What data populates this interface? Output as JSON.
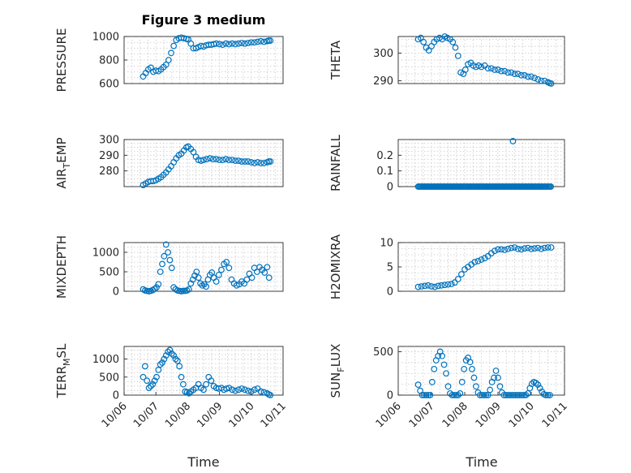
{
  "figure": {
    "title": "Figure 3 medium",
    "xlabel": "Time"
  },
  "chart_data": [
    {
      "type": "scatter",
      "ylabel": "PRESSURE",
      "ylim": [
        600,
        1000
      ],
      "yticks": [
        600,
        800,
        1000
      ],
      "xlim": [
        0,
        5
      ],
      "xticks": [],
      "color": "#0072BD",
      "grid": true,
      "x": [
        0.6,
        0.68,
        0.76,
        0.84,
        0.92,
        1.0,
        1.08,
        1.16,
        1.24,
        1.32,
        1.4,
        1.48,
        1.56,
        1.64,
        1.72,
        1.8,
        1.88,
        1.96,
        2.02,
        2.1,
        2.18,
        2.26,
        2.34,
        2.42,
        2.5,
        2.58,
        2.66,
        2.74,
        2.82,
        2.9,
        3.0,
        3.1,
        3.2,
        3.3,
        3.4,
        3.5,
        3.6,
        3.7,
        3.8,
        3.9,
        4.0,
        4.1,
        4.2,
        4.3,
        4.4,
        4.5,
        4.55,
        4.6
      ],
      "y": [
        660,
        690,
        720,
        735,
        700,
        710,
        705,
        720,
        740,
        760,
        800,
        860,
        920,
        970,
        985,
        990,
        985,
        980,
        975,
        940,
        900,
        900,
        910,
        920,
        915,
        925,
        930,
        930,
        935,
        940,
        935,
        930,
        940,
        935,
        940,
        935,
        940,
        945,
        940,
        945,
        950,
        950,
        955,
        960,
        955,
        960,
        965,
        965
      ]
    },
    {
      "type": "scatter",
      "ylabel": "THETA",
      "ylim": [
        289,
        306
      ],
      "yticks": [
        290,
        300
      ],
      "xlim": [
        0,
        5
      ],
      "xticks": [],
      "color": "#0072BD",
      "grid": true,
      "x": [
        0.6,
        0.68,
        0.76,
        0.84,
        0.92,
        1.0,
        1.08,
        1.16,
        1.24,
        1.32,
        1.4,
        1.48,
        1.56,
        1.64,
        1.72,
        1.8,
        1.88,
        1.96,
        2.02,
        2.1,
        2.18,
        2.26,
        2.34,
        2.42,
        2.5,
        2.6,
        2.7,
        2.8,
        2.9,
        3.0,
        3.1,
        3.2,
        3.3,
        3.4,
        3.5,
        3.6,
        3.7,
        3.8,
        3.9,
        4.0,
        4.1,
        4.2,
        4.3,
        4.4,
        4.5,
        4.55,
        4.6
      ],
      "y": [
        305,
        305.5,
        304,
        302,
        301,
        302.5,
        304,
        305,
        305.5,
        305,
        306,
        305.5,
        305,
        304,
        302,
        299,
        293,
        292.5,
        294,
        296,
        296.5,
        295.5,
        295,
        295.5,
        295,
        295.5,
        294.5,
        294.5,
        294,
        294,
        293.5,
        293.5,
        293,
        293,
        292.5,
        292.5,
        292,
        292,
        291.5,
        291.5,
        291,
        290.5,
        290,
        290,
        289.5,
        289.2,
        289
      ]
    },
    {
      "type": "scatter",
      "ylabel": "AIR_TEMP",
      "ylim": [
        270,
        300
      ],
      "yticks": [
        280,
        290,
        300
      ],
      "xlim": [
        0,
        5
      ],
      "xticks": [],
      "color": "#0072BD",
      "grid": true,
      "x": [
        0.6,
        0.68,
        0.76,
        0.84,
        0.92,
        1.0,
        1.08,
        1.16,
        1.24,
        1.32,
        1.4,
        1.48,
        1.56,
        1.64,
        1.72,
        1.8,
        1.88,
        1.96,
        2.02,
        2.1,
        2.18,
        2.26,
        2.34,
        2.42,
        2.5,
        2.6,
        2.7,
        2.8,
        2.9,
        3.0,
        3.1,
        3.2,
        3.3,
        3.4,
        3.5,
        3.6,
        3.7,
        3.8,
        3.9,
        4.0,
        4.1,
        4.2,
        4.3,
        4.4,
        4.5,
        4.55,
        4.6
      ],
      "y": [
        271,
        272,
        273,
        273.5,
        273.5,
        274,
        275,
        276,
        277.5,
        279,
        281,
        283,
        285.5,
        288,
        290,
        291,
        293,
        295,
        295.5,
        294,
        292,
        289,
        287,
        286.5,
        287,
        287.5,
        288,
        287.5,
        287.5,
        287,
        287,
        287.5,
        287,
        287,
        286.5,
        286.5,
        286,
        286,
        286,
        285.5,
        285,
        285.5,
        285,
        285,
        285.5,
        286,
        286
      ]
    },
    {
      "type": "scatter",
      "ylabel": "RAINFALL",
      "ylim": [
        0,
        0.3
      ],
      "yticks": [
        0,
        0.1,
        0.2
      ],
      "xlim": [
        0,
        5
      ],
      "xticks": [],
      "color": "#0072BD",
      "grid": true,
      "x_range": [
        0.6,
        4.6
      ],
      "baseline": 0,
      "x": [
        3.45
      ],
      "y": [
        0.29
      ]
    },
    {
      "type": "scatter",
      "ylabel": "MIXDEPTH",
      "ylim": [
        0,
        1250
      ],
      "yticks": [
        0,
        500,
        1000
      ],
      "xlim": [
        0,
        5
      ],
      "xticks": [],
      "color": "#0072BD",
      "grid": true,
      "x": [
        0.6,
        0.66,
        0.72,
        0.78,
        0.84,
        0.9,
        0.96,
        1.02,
        1.08,
        1.14,
        1.2,
        1.26,
        1.32,
        1.38,
        1.44,
        1.5,
        1.56,
        1.62,
        1.68,
        1.74,
        1.8,
        1.86,
        1.92,
        1.98,
        2.04,
        2.1,
        2.16,
        2.22,
        2.28,
        2.34,
        2.4,
        2.46,
        2.52,
        2.58,
        2.64,
        2.7,
        2.76,
        2.82,
        2.9,
        2.98,
        3.06,
        3.14,
        3.22,
        3.3,
        3.38,
        3.46,
        3.54,
        3.62,
        3.7,
        3.78,
        3.86,
        3.94,
        4.02,
        4.1,
        4.18,
        4.26,
        4.34,
        4.42,
        4.5,
        4.56
      ],
      "y": [
        50,
        20,
        10,
        0,
        10,
        30,
        60,
        100,
        180,
        500,
        700,
        900,
        1200,
        1000,
        800,
        600,
        100,
        50,
        20,
        10,
        0,
        10,
        10,
        20,
        50,
        200,
        300,
        400,
        500,
        350,
        200,
        150,
        180,
        120,
        300,
        420,
        480,
        350,
        250,
        420,
        550,
        700,
        750,
        600,
        300,
        200,
        150,
        180,
        250,
        200,
        300,
        450,
        350,
        600,
        500,
        620,
        550,
        480,
        620,
        350
      ]
    },
    {
      "type": "scatter",
      "ylabel": "H2OMIXRA",
      "ylim": [
        0,
        10
      ],
      "yticks": [
        0,
        5,
        10
      ],
      "xlim": [
        0,
        5
      ],
      "xticks": [],
      "color": "#0072BD",
      "grid": true,
      "x": [
        0.6,
        0.7,
        0.8,
        0.9,
        1.0,
        1.1,
        1.2,
        1.3,
        1.4,
        1.5,
        1.6,
        1.7,
        1.8,
        1.9,
        2.0,
        2.1,
        2.2,
        2.3,
        2.4,
        2.5,
        2.6,
        2.7,
        2.8,
        2.9,
        3.0,
        3.1,
        3.2,
        3.3,
        3.4,
        3.5,
        3.6,
        3.7,
        3.8,
        3.9,
        4.0,
        4.1,
        4.2,
        4.3,
        4.4,
        4.5,
        4.6
      ],
      "y": [
        0.9,
        1.0,
        1.1,
        1.2,
        1.0,
        0.9,
        1.1,
        1.2,
        1.3,
        1.4,
        1.5,
        1.8,
        2.5,
        3.5,
        4.5,
        5.0,
        5.5,
        6.0,
        6.2,
        6.5,
        6.8,
        7.2,
        7.8,
        8.3,
        8.6,
        8.6,
        8.5,
        8.7,
        8.9,
        9.0,
        8.7,
        8.6,
        8.8,
        8.9,
        8.7,
        8.8,
        8.9,
        8.7,
        8.9,
        9.0,
        9.0
      ]
    },
    {
      "type": "scatter",
      "ylabel": "TERR_MSL",
      "ylim": [
        0,
        1350
      ],
      "yticks": [
        0,
        500,
        1000
      ],
      "xlim": [
        0,
        5
      ],
      "xticks": [
        0,
        1,
        2,
        3,
        4,
        5
      ],
      "xticklabels": [
        "10/06",
        "10/07",
        "10/08",
        "10/09",
        "10/10",
        "10/11"
      ],
      "color": "#0072BD",
      "grid": true,
      "x": [
        0.6,
        0.66,
        0.72,
        0.78,
        0.84,
        0.9,
        0.96,
        1.02,
        1.08,
        1.14,
        1.2,
        1.26,
        1.32,
        1.38,
        1.44,
        1.5,
        1.56,
        1.62,
        1.68,
        1.74,
        1.8,
        1.86,
        1.92,
        1.98,
        2.04,
        2.1,
        2.18,
        2.26,
        2.34,
        2.42,
        2.5,
        2.58,
        2.66,
        2.74,
        2.82,
        2.9,
        2.98,
        3.06,
        3.14,
        3.22,
        3.3,
        3.4,
        3.5,
        3.6,
        3.7,
        3.8,
        3.9,
        4.0,
        4.1,
        4.2,
        4.3,
        4.4,
        4.5,
        4.55,
        4.6
      ],
      "y": [
        500,
        800,
        400,
        200,
        250,
        300,
        400,
        500,
        700,
        850,
        900,
        1000,
        1100,
        1200,
        1250,
        1150,
        1100,
        1000,
        950,
        800,
        500,
        300,
        100,
        80,
        50,
        100,
        150,
        200,
        300,
        200,
        150,
        300,
        500,
        400,
        250,
        200,
        180,
        200,
        150,
        180,
        200,
        150,
        120,
        150,
        180,
        150,
        120,
        100,
        150,
        180,
        100,
        80,
        50,
        20,
        0
      ]
    },
    {
      "type": "scatter",
      "ylabel": "SUN_FLUX",
      "ylim": [
        0,
        560
      ],
      "yticks": [
        0,
        500
      ],
      "xlim": [
        0,
        5
      ],
      "xticks": [
        0,
        1,
        2,
        3,
        4,
        5
      ],
      "xticklabels": [
        "10/06",
        "10/07",
        "10/08",
        "10/09",
        "10/10",
        "10/11"
      ],
      "color": "#0072BD",
      "grid": true,
      "x": [
        0.6,
        0.66,
        0.72,
        0.78,
        0.84,
        0.9,
        0.96,
        1.02,
        1.08,
        1.14,
        1.2,
        1.26,
        1.32,
        1.38,
        1.44,
        1.5,
        1.56,
        1.62,
        1.68,
        1.74,
        1.8,
        1.86,
        1.92,
        1.98,
        2.04,
        2.1,
        2.16,
        2.22,
        2.28,
        2.34,
        2.4,
        2.46,
        2.52,
        2.58,
        2.64,
        2.7,
        2.76,
        2.82,
        2.88,
        2.94,
        3.0,
        3.06,
        3.12,
        3.18,
        3.24,
        3.3,
        3.36,
        3.42,
        3.48,
        3.54,
        3.6,
        3.66,
        3.72,
        3.78,
        3.84,
        3.9,
        3.96,
        4.02,
        4.08,
        4.14,
        4.2,
        4.26,
        4.32,
        4.38,
        4.44,
        4.5,
        4.56
      ],
      "y": [
        120,
        50,
        0,
        0,
        0,
        0,
        0,
        150,
        300,
        400,
        450,
        500,
        450,
        350,
        250,
        100,
        20,
        0,
        0,
        0,
        0,
        20,
        150,
        300,
        400,
        430,
        380,
        300,
        200,
        100,
        30,
        0,
        0,
        0,
        0,
        0,
        60,
        150,
        200,
        280,
        200,
        100,
        30,
        0,
        0,
        0,
        0,
        0,
        0,
        0,
        0,
        0,
        0,
        0,
        0,
        20,
        80,
        130,
        150,
        140,
        120,
        80,
        40,
        10,
        0,
        0,
        0
      ]
    }
  ]
}
